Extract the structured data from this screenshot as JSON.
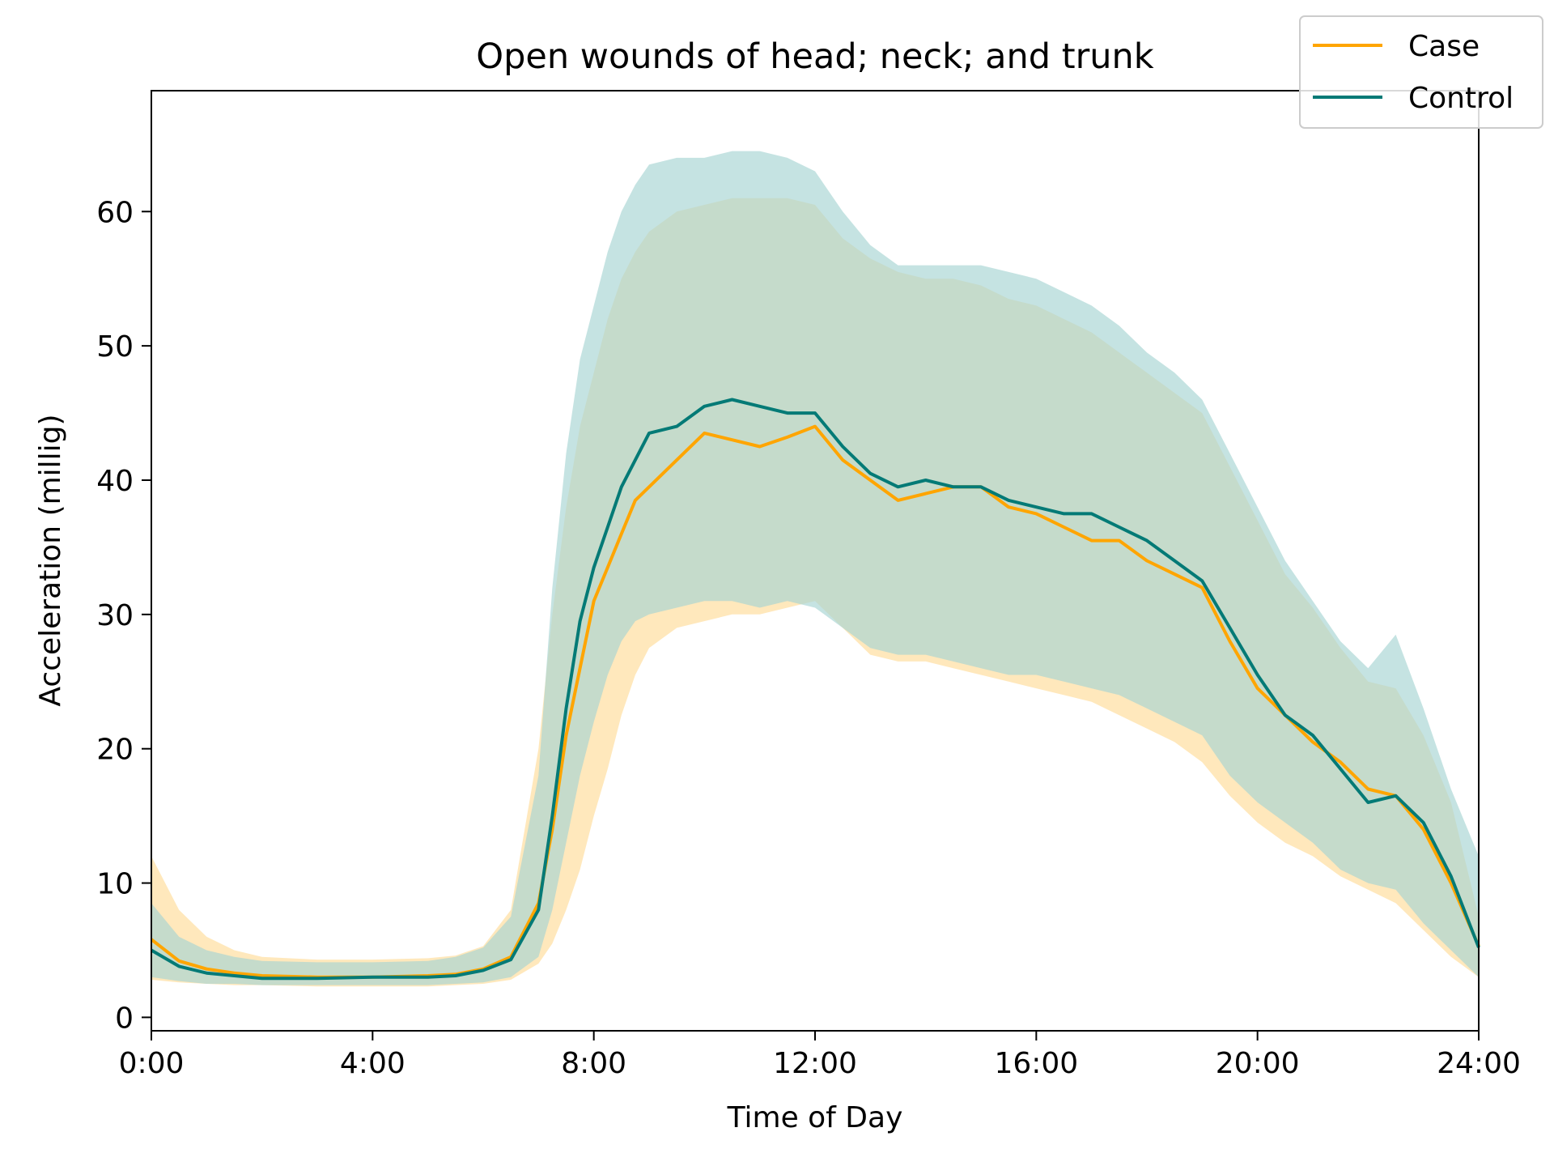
{
  "chart_data": {
    "type": "line",
    "title": "Open wounds of head; neck; and trunk",
    "xlabel": "Time of Day",
    "ylabel": "Acceleration (millig)",
    "xlim": [
      0,
      24
    ],
    "ylim": [
      -1,
      69
    ],
    "x_ticks": [
      {
        "value": 0,
        "label": "0:00"
      },
      {
        "value": 4,
        "label": "4:00"
      },
      {
        "value": 8,
        "label": "8:00"
      },
      {
        "value": 12,
        "label": "12:00"
      },
      {
        "value": 16,
        "label": "16:00"
      },
      {
        "value": 20,
        "label": "20:00"
      },
      {
        "value": 24,
        "label": "24:00"
      }
    ],
    "y_ticks": [
      {
        "value": 0,
        "label": "0"
      },
      {
        "value": 10,
        "label": "10"
      },
      {
        "value": 20,
        "label": "20"
      },
      {
        "value": 30,
        "label": "30"
      },
      {
        "value": 40,
        "label": "40"
      },
      {
        "value": 50,
        "label": "50"
      },
      {
        "value": 60,
        "label": "60"
      }
    ],
    "grid": false,
    "legend_position": "top-right",
    "x": [
      0,
      0.5,
      1,
      1.5,
      2,
      3,
      4,
      5,
      5.5,
      6,
      6.5,
      7,
      7.25,
      7.5,
      7.75,
      8,
      8.25,
      8.5,
      8.75,
      9,
      9.5,
      10,
      10.5,
      11,
      11.5,
      12,
      12.5,
      13,
      13.5,
      14,
      14.5,
      15,
      15.5,
      16,
      16.5,
      17,
      17.5,
      18,
      18.5,
      19,
      19.5,
      20,
      20.5,
      21,
      21.5,
      22,
      22.5,
      23,
      23.5,
      24
    ],
    "series": [
      {
        "name": "Case",
        "color": "#FFA500",
        "band_color": "#FFE0A6",
        "values": [
          5.8,
          4.2,
          3.6,
          3.3,
          3.1,
          3.0,
          3.0,
          3.1,
          3.2,
          3.6,
          4.5,
          8.5,
          14.0,
          21.0,
          26.0,
          31.0,
          33.5,
          36.0,
          38.5,
          39.5,
          41.5,
          43.5,
          43.0,
          42.5,
          43.2,
          44.0,
          41.5,
          40.0,
          38.5,
          39.0,
          39.5,
          39.5,
          38.0,
          37.5,
          36.5,
          35.5,
          35.5,
          34.0,
          33.0,
          32.0,
          28.0,
          24.5,
          22.5,
          20.5,
          19.0,
          17.0,
          16.5,
          14.0,
          10.0,
          5.3
        ],
        "lower": [
          2.8,
          2.6,
          2.5,
          2.4,
          2.4,
          2.3,
          2.3,
          2.3,
          2.4,
          2.5,
          2.8,
          4.0,
          5.5,
          8.0,
          11.0,
          15.0,
          18.5,
          22.5,
          25.5,
          27.5,
          29.0,
          29.5,
          30.0,
          30.0,
          30.5,
          31.0,
          29.0,
          27.0,
          26.5,
          26.5,
          26.0,
          25.5,
          25.0,
          24.5,
          24.0,
          23.5,
          22.5,
          21.5,
          20.5,
          19.0,
          16.5,
          14.5,
          13.0,
          12.0,
          10.5,
          9.5,
          8.5,
          6.5,
          4.5,
          3.0
        ],
        "upper": [
          12.0,
          8.0,
          6.0,
          5.0,
          4.5,
          4.3,
          4.3,
          4.4,
          4.6,
          5.3,
          8.0,
          20.0,
          30.0,
          38.0,
          44.0,
          48.0,
          52.0,
          55.0,
          57.0,
          58.5,
          60.0,
          60.5,
          61.0,
          61.0,
          61.0,
          60.5,
          58.0,
          56.5,
          55.5,
          55.0,
          55.0,
          54.5,
          53.5,
          53.0,
          52.0,
          51.0,
          49.5,
          48.0,
          46.5,
          45.0,
          41.0,
          37.0,
          33.0,
          30.5,
          27.5,
          25.0,
          24.5,
          21.0,
          16.0,
          7.5
        ]
      },
      {
        "name": "Control",
        "color": "#047A76",
        "band_color": "#A6D4D3",
        "values": [
          5.0,
          3.8,
          3.3,
          3.1,
          2.9,
          2.9,
          3.0,
          3.0,
          3.1,
          3.5,
          4.3,
          8.0,
          15.0,
          23.0,
          29.5,
          33.5,
          36.5,
          39.5,
          41.5,
          43.5,
          44.0,
          45.5,
          46.0,
          45.5,
          45.0,
          45.0,
          42.5,
          40.5,
          39.5,
          40.0,
          39.5,
          39.5,
          38.5,
          38.0,
          37.5,
          37.5,
          36.5,
          35.5,
          34.0,
          32.5,
          29.0,
          25.5,
          22.5,
          21.0,
          18.5,
          16.0,
          16.5,
          14.5,
          10.5,
          5.2
        ],
        "lower": [
          3.0,
          2.7,
          2.5,
          2.5,
          2.4,
          2.4,
          2.4,
          2.4,
          2.5,
          2.6,
          3.0,
          4.5,
          8.0,
          13.0,
          18.0,
          22.0,
          25.5,
          28.0,
          29.5,
          30.0,
          30.5,
          31.0,
          31.0,
          30.5,
          31.0,
          30.5,
          29.0,
          27.5,
          27.0,
          27.0,
          26.5,
          26.0,
          25.5,
          25.5,
          25.0,
          24.5,
          24.0,
          23.0,
          22.0,
          21.0,
          18.0,
          16.0,
          14.5,
          13.0,
          11.0,
          10.0,
          9.5,
          7.0,
          5.0,
          3.0
        ],
        "upper": [
          8.5,
          6.0,
          5.0,
          4.5,
          4.2,
          4.1,
          4.1,
          4.2,
          4.5,
          5.2,
          7.5,
          18.0,
          32.0,
          42.0,
          49.0,
          53.0,
          57.0,
          60.0,
          62.0,
          63.5,
          64.0,
          64.0,
          64.5,
          64.5,
          64.0,
          63.0,
          60.0,
          57.5,
          56.0,
          56.0,
          56.0,
          56.0,
          55.5,
          55.0,
          54.0,
          53.0,
          51.5,
          49.5,
          48.0,
          46.0,
          42.0,
          38.0,
          34.0,
          31.0,
          28.0,
          26.0,
          28.5,
          23.0,
          17.0,
          12.0
        ]
      }
    ]
  }
}
